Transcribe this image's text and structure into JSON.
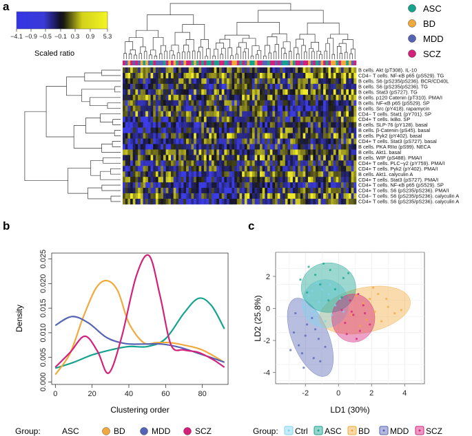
{
  "panel_labels": {
    "a": "a",
    "b": "b",
    "c": "c"
  },
  "colors": {
    "ASC": "#14a38e",
    "BD": "#f2a93b",
    "MDD": "#5563b4",
    "SCZ": "#d4207a",
    "Ctrl": "#7fd4ef"
  },
  "heatmap": {
    "colorbar": {
      "ticks": [
        "−4.1",
        "−0.9",
        "−0.5",
        "−0.1",
        "0.3",
        "0.9",
        "5.3"
      ],
      "label": "Scaled ratio"
    },
    "legend": [
      {
        "name": "ASC",
        "color": "#14a38e"
      },
      {
        "name": "BD",
        "color": "#f2a93b"
      },
      {
        "name": "MDD",
        "color": "#5563b4"
      },
      {
        "name": "SCZ",
        "color": "#d4207a"
      }
    ],
    "row_labels": [
      "B cells. Akt (pT308). IL-10",
      "CD4− T cells. NF-κB p65 (pS529). TG",
      "B cells. S6 (pS235/pS236). BCR/CD40L",
      "B cells. S6 (pS235/pS236). TG",
      "B cells. Stat3 (pS727). TG",
      "B cells. p120 Catenin (pT310). PMA/I",
      "B cells. NF-κB p65 (pS529). SP",
      "B cells. Src (pY418). rapamycin",
      "CD4− T cells. Stat1 (pY701). SP",
      "CD4+ T cells. IκBα. SP",
      "B cells. SLP-76 (pY128). basal",
      "B cells. β-Catenin (pS45). basal",
      "B cells. Pyk2 (pY402). basal",
      "CD4+ T cells. Stat3 (pS727). basal",
      "B cells. PKA RIIα (pS99). NECA",
      "B cells. Akt1. basal",
      "B cells. WIP (pS488). PMA/I",
      "CD4+ T cells. PLC−γ2 (pY759). PMA/I",
      "CD4+ T cells. Pyk2 (pY402). PMA/I",
      "B cells. Akt1. calyculin A",
      "CD4+ T cells. Stat3 (pS727). PMA/I",
      "CD4+ T cells. NF-κB p65 (pS529). SP",
      "CD4+ T cells. S6 (pS235/pS236). PMA/I",
      "CD4− T cells. S6 (pS235/pS236). calyculin A",
      "CD4+ T cells. S6 (pS235/pS236). calyculin A"
    ]
  },
  "chart_data": [
    {
      "type": "line",
      "title": "",
      "xlabel": "Clustering order",
      "ylabel": "Density",
      "xlim": [
        -2,
        94
      ],
      "ylim": [
        -0.0005,
        0.0262
      ],
      "xticks": [
        0,
        20,
        40,
        60,
        80
      ],
      "yticks": [
        0.0,
        0.005,
        0.01,
        0.015,
        0.02,
        0.025
      ],
      "ytick_labels": [
        "0.000",
        "0.005",
        "0.010",
        "0.015",
        "0.020",
        "0.025"
      ],
      "legend_title": "Group:",
      "series": [
        {
          "name": "ASC",
          "color": "#14a38e",
          "x": [
            0,
            10,
            20,
            30,
            40,
            50,
            60,
            70,
            78,
            85,
            92
          ],
          "y": [
            0.0028,
            0.004,
            0.0055,
            0.0065,
            0.0072,
            0.0072,
            0.0088,
            0.014,
            0.017,
            0.0155,
            0.0108
          ]
        },
        {
          "name": "BD",
          "color": "#f2a93b",
          "x": [
            0,
            8,
            15,
            22,
            28,
            34,
            40,
            48,
            55,
            62,
            70,
            80,
            92
          ],
          "y": [
            0.0015,
            0.0058,
            0.013,
            0.019,
            0.0206,
            0.0185,
            0.012,
            0.008,
            0.008,
            0.008,
            0.0075,
            0.0065,
            0.004
          ]
        },
        {
          "name": "MDD",
          "color": "#5563b4",
          "x": [
            0,
            9,
            18,
            28,
            38,
            48,
            58,
            68,
            78,
            86,
            92
          ],
          "y": [
            0.0115,
            0.0133,
            0.012,
            0.009,
            0.0078,
            0.0077,
            0.0077,
            0.007,
            0.0058,
            0.0048,
            0.004
          ]
        },
        {
          "name": "SCZ",
          "color": "#d4207a",
          "x": [
            0,
            8,
            16,
            23,
            29,
            36,
            44,
            51,
            57,
            63,
            70,
            78,
            86,
            92
          ],
          "y": [
            0.003,
            0.006,
            0.0093,
            0.0062,
            0.0018,
            0.009,
            0.0215,
            0.0257,
            0.0175,
            0.0075,
            0.0065,
            0.006,
            0.0045,
            0.003
          ]
        }
      ]
    },
    {
      "type": "scatter",
      "title": "",
      "xlabel": "LD1 (30%)",
      "ylabel": "LD2 (25.8%)",
      "xlim": [
        -3.8,
        5.2
      ],
      "ylim": [
        -4.7,
        3.5
      ],
      "xticks": [
        -2,
        0,
        2,
        4
      ],
      "yticks": [
        -4,
        -2,
        0,
        2
      ],
      "legend_title": "Group:",
      "ellipses": [
        {
          "name": "MDD",
          "color": "#5563b4",
          "center": [
            -1.7,
            -1.8
          ],
          "rx": 1.1,
          "ry": 2.6,
          "angle": -22
        },
        {
          "name": "BD",
          "color": "#f2a93b",
          "center": [
            1.6,
            -0.1
          ],
          "rx": 2.8,
          "ry": 1.4,
          "angle": -12
        },
        {
          "name": "Ctrl",
          "color": "#7fd4ef",
          "center": [
            -0.8,
            0.3
          ],
          "rx": 1.4,
          "ry": 1.5,
          "angle": 0
        },
        {
          "name": "ASC",
          "color": "#14a38e",
          "center": [
            -0.6,
            1.3
          ],
          "rx": 1.65,
          "ry": 1.55,
          "angle": 0
        },
        {
          "name": "SCZ",
          "color": "#d4207a",
          "center": [
            0.9,
            -0.6
          ],
          "rx": 1.3,
          "ry": 1.5,
          "angle": 0
        }
      ],
      "points": [
        {
          "group": "Ctrl",
          "pts": [
            [
              -1.2,
              0.4
            ],
            [
              -0.6,
              0.9
            ],
            [
              -1.5,
              -0.2
            ],
            [
              -0.2,
              0.2
            ],
            [
              -1.0,
              1.2
            ],
            [
              -0.4,
              -0.4
            ],
            [
              -1.8,
              0.8
            ],
            [
              0.1,
              0.6
            ],
            [
              -0.8,
              -0.8
            ],
            [
              -1.3,
              1.6
            ],
            [
              -2.1,
              0.1
            ],
            [
              -0.5,
              1.5
            ],
            [
              0.3,
              -0.2
            ],
            [
              -1.6,
              1.1
            ]
          ]
        },
        {
          "group": "ASC",
          "pts": [
            [
              -1.4,
              2.1
            ],
            [
              -0.5,
              2.4
            ],
            [
              0.3,
              1.9
            ],
            [
              -1.1,
              1.5
            ],
            [
              -1.8,
              2.6
            ],
            [
              -0.2,
              1.2
            ],
            [
              0.6,
              2.2
            ],
            [
              -0.9,
              2.8
            ],
            [
              -1.9,
              1.0
            ],
            [
              0.2,
              0.7
            ],
            [
              -2.3,
              1.8
            ],
            [
              -0.6,
              0.5
            ]
          ]
        },
        {
          "group": "BD",
          "pts": [
            [
              1.5,
              0.3
            ],
            [
              2.2,
              -0.2
            ],
            [
              3.0,
              0.1
            ],
            [
              1.1,
              0.8
            ],
            [
              2.6,
              -0.8
            ],
            [
              3.4,
              -0.3
            ],
            [
              1.9,
              0.6
            ],
            [
              0.8,
              -0.4
            ],
            [
              2.9,
              0.6
            ],
            [
              1.3,
              -1.1
            ],
            [
              3.8,
              -0.1
            ],
            [
              2.4,
              0.9
            ],
            [
              1.7,
              -0.7
            ],
            [
              2.1,
              1.3
            ]
          ]
        },
        {
          "group": "MDD",
          "pts": [
            [
              -1.9,
              -1.0
            ],
            [
              -2.4,
              -2.3
            ],
            [
              -1.5,
              -3.1
            ],
            [
              -2.1,
              -3.7
            ],
            [
              -2.7,
              -1.5
            ],
            [
              -1.2,
              -1.9
            ],
            [
              -1.6,
              -0.6
            ],
            [
              -2.2,
              -2.8
            ],
            [
              -0.8,
              -2.4
            ],
            [
              -2.9,
              -2.6
            ],
            [
              -1.4,
              -1.3
            ],
            [
              -2.6,
              -0.3
            ],
            [
              -1.1,
              -3.3
            ],
            [
              -2.0,
              -1.7
            ]
          ]
        },
        {
          "group": "SCZ",
          "pts": [
            [
              0.9,
              -0.4
            ],
            [
              1.3,
              -1.4
            ],
            [
              0.4,
              -0.9
            ],
            [
              1.6,
              -0.3
            ],
            [
              0.7,
              0.5
            ],
            [
              1.1,
              -1.9
            ],
            [
              0.2,
              -0.1
            ],
            [
              1.5,
              0.2
            ],
            [
              0.5,
              -1.6
            ],
            [
              1.9,
              -1.0
            ],
            [
              0.8,
              -0.2
            ],
            [
              1.2,
              0.9
            ]
          ]
        }
      ]
    }
  ],
  "legend_b": {
    "title": "Group:",
    "items": [
      "ASC",
      "BD",
      "MDD",
      "SCZ"
    ]
  },
  "legend_c": {
    "title": "Group:",
    "items": [
      "Ctrl",
      "ASC",
      "BD",
      "MDD",
      "SCZ"
    ]
  }
}
